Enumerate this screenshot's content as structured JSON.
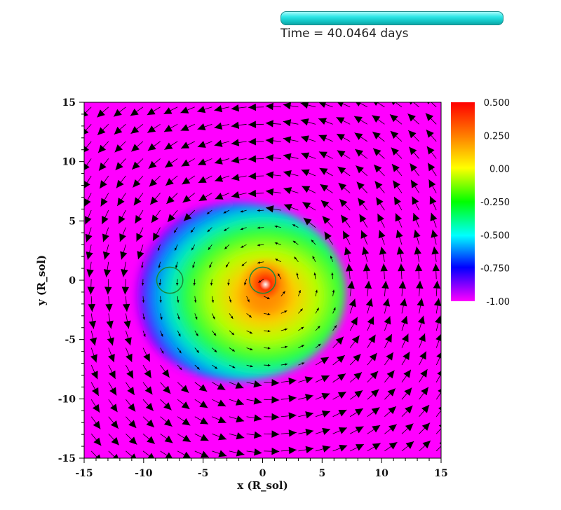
{
  "header": {
    "time_label": "Time = 40.0464 days",
    "progress_fraction": 1.0
  },
  "chart_data": {
    "type": "heatmap",
    "title": "",
    "xlabel": "x (R_sol)",
    "ylabel": "y (R_sol)",
    "xlim": [
      -15,
      15
    ],
    "ylim": [
      -15,
      15
    ],
    "xticks": [
      -15,
      -10,
      -5,
      0,
      5,
      10,
      15
    ],
    "yticks": [
      -15,
      -10,
      -5,
      0,
      5,
      10,
      15
    ],
    "xtick_labels": [
      "-15",
      "-10",
      "-5",
      "0",
      "5",
      "10",
      "15"
    ],
    "ytick_labels": [
      "-15",
      "-10",
      "-5",
      "0",
      "5",
      "10",
      "15"
    ],
    "colorbar": {
      "min": -1.0,
      "max": 0.5,
      "ticks": [
        0.5,
        0.25,
        0.0,
        -0.25,
        -0.5,
        -0.75,
        -1.0
      ],
      "tick_labels": [
        "0.500",
        "0.250",
        "0.00",
        "-0.250",
        "-0.500",
        "-0.750",
        "-1.00"
      ],
      "colormap": "rainbow (magenta-blue-cyan-green-yellow-red)"
    },
    "colors": {
      "background_field": "#ff00ff",
      "vector_arrows": "#000000",
      "star_markers": "#1b8a3a"
    },
    "features": {
      "dense_region_center": [
        0.0,
        0.0
      ],
      "dense_region_extent": {
        "x": [
          -11,
          7
        ],
        "y": [
          -8.5,
          6.5
        ]
      },
      "primary_star_center": [
        0.0,
        0.0
      ],
      "primary_star_radius": 1.1,
      "companion_star_center": [
        -7.8,
        0.0
      ],
      "companion_star_radius": 1.1,
      "rotation_sense": "counterclockwise"
    }
  }
}
